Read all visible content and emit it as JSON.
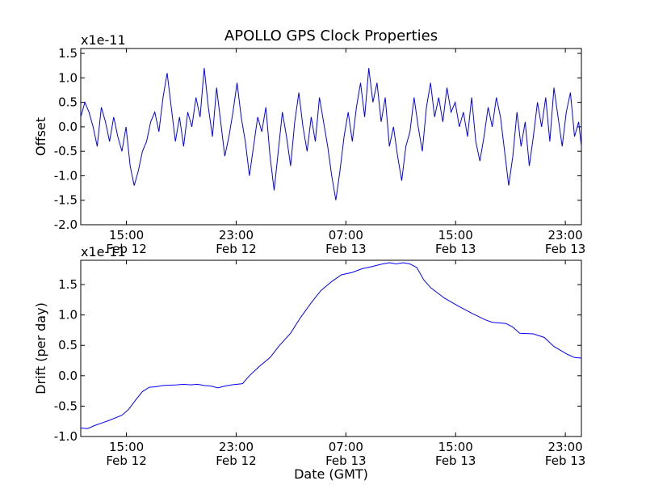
{
  "figure": {
    "title": "APOLLO GPS Clock Properties"
  },
  "chart_data": [
    {
      "type": "line",
      "ylabel": "Offset",
      "xlabel": "",
      "y_multiplier_label": "x1e-11",
      "x_unit": "hours since 2012-02-12 11:40 GMT",
      "xlim": [
        0,
        36.5
      ],
      "ylim": [
        -2.0,
        1.6
      ],
      "x_ticks": [
        {
          "x": 3.33,
          "label_time": "15:00",
          "label_date": "Feb 12"
        },
        {
          "x": 11.33,
          "label_time": "23:00",
          "label_date": "Feb 12"
        },
        {
          "x": 19.33,
          "label_time": "07:00",
          "label_date": "Feb 13"
        },
        {
          "x": 27.33,
          "label_time": "15:00",
          "label_date": "Feb 13"
        },
        {
          "x": 35.33,
          "label_time": "23:00",
          "label_date": "Feb 13"
        }
      ],
      "y_ticks": [
        -2.0,
        -1.5,
        -1.0,
        -0.5,
        0.0,
        0.5,
        1.0,
        1.5
      ],
      "y_tick_labels": [
        "-2.0",
        "-1.5",
        "-1.0",
        "-0.5",
        "0.0",
        "0.5",
        "1.0",
        "1.5"
      ],
      "series": [
        {
          "name": "",
          "color": "#0000ff",
          "points": [
            [
              0.0,
              0.2
            ],
            [
              0.3,
              0.5
            ],
            [
              0.6,
              0.3
            ],
            [
              0.9,
              0.0
            ],
            [
              1.2,
              -0.4
            ],
            [
              1.5,
              0.4
            ],
            [
              1.8,
              0.1
            ],
            [
              2.1,
              -0.3
            ],
            [
              2.4,
              0.2
            ],
            [
              2.7,
              -0.2
            ],
            [
              3.0,
              -0.5
            ],
            [
              3.3,
              0.0
            ],
            [
              3.6,
              -0.8
            ],
            [
              3.9,
              -1.2
            ],
            [
              4.2,
              -0.9
            ],
            [
              4.5,
              -0.5
            ],
            [
              4.8,
              -0.3
            ],
            [
              5.1,
              0.1
            ],
            [
              5.4,
              0.3
            ],
            [
              5.7,
              -0.1
            ],
            [
              6.0,
              0.6
            ],
            [
              6.3,
              1.1
            ],
            [
              6.6,
              0.4
            ],
            [
              6.9,
              -0.3
            ],
            [
              7.2,
              0.2
            ],
            [
              7.5,
              -0.4
            ],
            [
              7.8,
              0.3
            ],
            [
              8.1,
              0.0
            ],
            [
              8.4,
              0.6
            ],
            [
              8.7,
              0.2
            ],
            [
              9.0,
              1.2
            ],
            [
              9.3,
              0.4
            ],
            [
              9.6,
              -0.2
            ],
            [
              9.9,
              0.8
            ],
            [
              10.2,
              0.1
            ],
            [
              10.5,
              -0.6
            ],
            [
              10.8,
              -0.2
            ],
            [
              11.1,
              0.3
            ],
            [
              11.4,
              0.9
            ],
            [
              11.7,
              0.2
            ],
            [
              12.0,
              -0.3
            ],
            [
              12.3,
              -1.0
            ],
            [
              12.6,
              -0.4
            ],
            [
              12.9,
              0.2
            ],
            [
              13.2,
              -0.1
            ],
            [
              13.5,
              0.4
            ],
            [
              13.8,
              -0.6
            ],
            [
              14.1,
              -1.3
            ],
            [
              14.4,
              -0.5
            ],
            [
              14.7,
              0.3
            ],
            [
              15.0,
              -0.2
            ],
            [
              15.3,
              -0.8
            ],
            [
              15.6,
              0.1
            ],
            [
              15.9,
              0.7
            ],
            [
              16.2,
              0.0
            ],
            [
              16.5,
              -0.5
            ],
            [
              16.8,
              0.2
            ],
            [
              17.1,
              -0.3
            ],
            [
              17.4,
              0.6
            ],
            [
              17.7,
              0.1
            ],
            [
              18.0,
              -0.4
            ],
            [
              18.3,
              -1.0
            ],
            [
              18.6,
              -1.5
            ],
            [
              18.9,
              -0.9
            ],
            [
              19.2,
              -0.2
            ],
            [
              19.5,
              0.3
            ],
            [
              19.8,
              -0.3
            ],
            [
              20.1,
              0.4
            ],
            [
              20.4,
              0.9
            ],
            [
              20.7,
              0.2
            ],
            [
              21.0,
              1.2
            ],
            [
              21.3,
              0.5
            ],
            [
              21.6,
              0.9
            ],
            [
              21.9,
              0.1
            ],
            [
              22.2,
              0.6
            ],
            [
              22.5,
              -0.4
            ],
            [
              22.8,
              0.0
            ],
            [
              23.1,
              -0.6
            ],
            [
              23.4,
              -1.1
            ],
            [
              23.7,
              -0.4
            ],
            [
              24.0,
              -0.1
            ],
            [
              24.3,
              0.6
            ],
            [
              24.6,
              0.0
            ],
            [
              24.9,
              -0.5
            ],
            [
              25.2,
              0.4
            ],
            [
              25.5,
              0.9
            ],
            [
              25.8,
              0.2
            ],
            [
              26.1,
              0.6
            ],
            [
              26.4,
              0.1
            ],
            [
              26.7,
              0.8
            ],
            [
              27.0,
              0.3
            ],
            [
              27.3,
              0.5
            ],
            [
              27.6,
              0.0
            ],
            [
              27.9,
              0.3
            ],
            [
              28.2,
              -0.2
            ],
            [
              28.5,
              0.6
            ],
            [
              28.8,
              -0.3
            ],
            [
              29.1,
              -0.7
            ],
            [
              29.4,
              -0.2
            ],
            [
              29.7,
              0.4
            ],
            [
              30.0,
              0.0
            ],
            [
              30.3,
              0.6
            ],
            [
              30.6,
              0.2
            ],
            [
              30.9,
              -0.5
            ],
            [
              31.2,
              -1.2
            ],
            [
              31.5,
              -0.6
            ],
            [
              31.8,
              0.3
            ],
            [
              32.1,
              -0.4
            ],
            [
              32.4,
              0.1
            ],
            [
              32.7,
              -0.8
            ],
            [
              33.0,
              -0.2
            ],
            [
              33.3,
              0.5
            ],
            [
              33.6,
              0.0
            ],
            [
              33.9,
              0.6
            ],
            [
              34.2,
              -0.3
            ],
            [
              34.5,
              0.8
            ],
            [
              34.8,
              0.2
            ],
            [
              35.1,
              -0.4
            ],
            [
              35.4,
              0.3
            ],
            [
              35.7,
              0.7
            ],
            [
              36.0,
              -0.2
            ],
            [
              36.3,
              0.1
            ],
            [
              36.5,
              -0.4
            ]
          ]
        }
      ]
    },
    {
      "type": "line",
      "ylabel": "Drift (per day)",
      "xlabel": "Date (GMT)",
      "y_multiplier_label": "x1e-11",
      "x_unit": "hours since 2012-02-12 11:40 GMT",
      "xlim": [
        0,
        36.5
      ],
      "ylim": [
        -1.0,
        1.9
      ],
      "x_ticks": [
        {
          "x": 3.33,
          "label_time": "15:00",
          "label_date": "Feb 12"
        },
        {
          "x": 11.33,
          "label_time": "23:00",
          "label_date": "Feb 12"
        },
        {
          "x": 19.33,
          "label_time": "07:00",
          "label_date": "Feb 13"
        },
        {
          "x": 27.33,
          "label_time": "15:00",
          "label_date": "Feb 13"
        },
        {
          "x": 35.33,
          "label_time": "23:00",
          "label_date": "Feb 13"
        }
      ],
      "y_ticks": [
        -1.0,
        -0.5,
        0.0,
        0.5,
        1.0,
        1.5
      ],
      "y_tick_labels": [
        "-1.0",
        "-0.5",
        "0.0",
        "0.5",
        "1.0",
        "1.5"
      ],
      "series": [
        {
          "name": "",
          "color": "#0000ff",
          "points": [
            [
              0.0,
              -0.86
            ],
            [
              0.5,
              -0.87
            ],
            [
              1.0,
              -0.82
            ],
            [
              2.0,
              -0.74
            ],
            [
              3.0,
              -0.65
            ],
            [
              3.5,
              -0.55
            ],
            [
              4.0,
              -0.4
            ],
            [
              4.5,
              -0.26
            ],
            [
              5.0,
              -0.19
            ],
            [
              5.5,
              -0.18
            ],
            [
              6.0,
              -0.16
            ],
            [
              7.0,
              -0.15
            ],
            [
              7.5,
              -0.14
            ],
            [
              8.0,
              -0.15
            ],
            [
              8.5,
              -0.14
            ],
            [
              9.0,
              -0.16
            ],
            [
              9.5,
              -0.17
            ],
            [
              10.0,
              -0.2
            ],
            [
              10.5,
              -0.17
            ],
            [
              11.0,
              -0.15
            ],
            [
              11.8,
              -0.13
            ],
            [
              12.3,
              0.0
            ],
            [
              13.0,
              0.15
            ],
            [
              13.8,
              0.3
            ],
            [
              14.5,
              0.5
            ],
            [
              15.3,
              0.7
            ],
            [
              16.0,
              0.95
            ],
            [
              16.8,
              1.2
            ],
            [
              17.5,
              1.4
            ],
            [
              18.3,
              1.55
            ],
            [
              19.0,
              1.66
            ],
            [
              19.8,
              1.7
            ],
            [
              20.5,
              1.76
            ],
            [
              21.3,
              1.8
            ],
            [
              22.0,
              1.84
            ],
            [
              22.5,
              1.86
            ],
            [
              23.0,
              1.84
            ],
            [
              23.5,
              1.86
            ],
            [
              24.0,
              1.84
            ],
            [
              24.5,
              1.78
            ],
            [
              25.0,
              1.58
            ],
            [
              25.5,
              1.45
            ],
            [
              26.5,
              1.28
            ],
            [
              27.5,
              1.15
            ],
            [
              28.5,
              1.03
            ],
            [
              29.5,
              0.92
            ],
            [
              30.0,
              0.88
            ],
            [
              31.0,
              0.86
            ],
            [
              31.5,
              0.8
            ],
            [
              32.0,
              0.7
            ],
            [
              33.0,
              0.69
            ],
            [
              33.8,
              0.63
            ],
            [
              34.5,
              0.48
            ],
            [
              35.5,
              0.35
            ],
            [
              36.0,
              0.3
            ],
            [
              36.5,
              0.29
            ]
          ]
        }
      ]
    }
  ]
}
